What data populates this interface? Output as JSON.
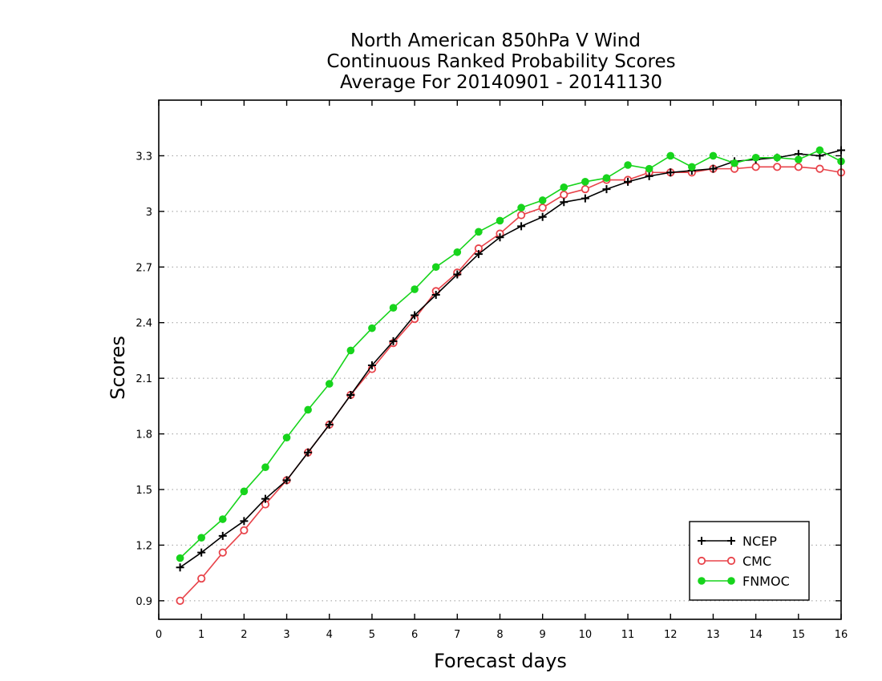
{
  "chart_data": {
    "type": "line",
    "title": [
      "North American 850hPa V Wind",
      "Continuous Ranked Probability Scores",
      "Average For 20140901 - 20141130"
    ],
    "xlabel": "Forecast days",
    "ylabel": "Scores",
    "xlim": [
      0,
      16
    ],
    "ylim": [
      0.8,
      3.6
    ],
    "xticks": [
      0,
      1,
      2,
      3,
      4,
      5,
      6,
      7,
      8,
      9,
      10,
      11,
      12,
      13,
      14,
      15,
      16
    ],
    "yticks": [
      0.9,
      1.2,
      1.5,
      1.8,
      2.1,
      2.4,
      2.7,
      3,
      3.3
    ],
    "ytick_labels": [
      "0.9",
      "1.2",
      "1.5",
      "1.8",
      "2.1",
      "2.4",
      "2.7",
      "3",
      "3.3"
    ],
    "grid": "horizontal dotted",
    "legend_position": "bottom-right",
    "x": [
      0.5,
      1,
      1.5,
      2,
      2.5,
      3,
      3.5,
      4,
      4.5,
      5,
      5.5,
      6,
      6.5,
      7,
      7.5,
      8,
      8.5,
      9,
      9.5,
      10,
      10.5,
      11,
      11.5,
      12,
      12.5,
      13,
      13.5,
      14,
      14.5,
      15,
      15.5,
      16
    ],
    "series": [
      {
        "name": "NCEP",
        "color": "#000000",
        "marker": "plus",
        "values": [
          1.08,
          1.16,
          1.25,
          1.33,
          1.45,
          1.55,
          1.7,
          1.85,
          2.01,
          2.17,
          2.3,
          2.44,
          2.55,
          2.66,
          2.77,
          2.86,
          2.92,
          2.97,
          3.05,
          3.07,
          3.12,
          3.16,
          3.19,
          3.21,
          3.22,
          3.23,
          3.27,
          3.28,
          3.29,
          3.31,
          3.3,
          3.33
        ]
      },
      {
        "name": "CMC",
        "color": "#e8434a",
        "marker": "open-circle",
        "values": [
          0.9,
          1.02,
          1.16,
          1.28,
          1.42,
          1.55,
          1.7,
          1.85,
          2.01,
          2.15,
          2.29,
          2.42,
          2.57,
          2.67,
          2.8,
          2.88,
          2.98,
          3.02,
          3.09,
          3.12,
          3.17,
          3.17,
          3.21,
          3.21,
          3.21,
          3.23,
          3.23,
          3.24,
          3.24,
          3.24,
          3.23,
          3.21
        ]
      },
      {
        "name": "FNMOC",
        "color": "#17d41c",
        "marker": "filled-circle",
        "values": [
          1.13,
          1.24,
          1.34,
          1.49,
          1.62,
          1.78,
          1.93,
          2.07,
          2.25,
          2.37,
          2.48,
          2.58,
          2.7,
          2.78,
          2.89,
          2.95,
          3.02,
          3.06,
          3.13,
          3.16,
          3.18,
          3.25,
          3.23,
          3.3,
          3.24,
          3.3,
          3.26,
          3.29,
          3.29,
          3.28,
          3.33,
          3.27
        ]
      }
    ]
  }
}
